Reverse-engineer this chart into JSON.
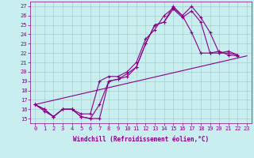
{
  "xlabel": "Windchill (Refroidissement éolien,°C)",
  "bg_color": "#c8eef0",
  "line_color": "#880088",
  "xlim": [
    -0.5,
    23.5
  ],
  "ylim": [
    14.5,
    27.5
  ],
  "xticks": [
    0,
    1,
    2,
    3,
    4,
    5,
    6,
    7,
    8,
    9,
    10,
    11,
    12,
    13,
    14,
    15,
    16,
    17,
    18,
    19,
    20,
    21,
    22,
    23
  ],
  "yticks": [
    15,
    16,
    17,
    18,
    19,
    20,
    21,
    22,
    23,
    24,
    25,
    26,
    27
  ],
  "series": [
    {
      "x": [
        0,
        1,
        2,
        3,
        4,
        5,
        6,
        7,
        8,
        9,
        10,
        11,
        12,
        13,
        14,
        15,
        16,
        17,
        18,
        19,
        20,
        21,
        22
      ],
      "y": [
        16.5,
        16.0,
        15.2,
        16.0,
        16.0,
        15.2,
        15.0,
        15.0,
        19.0,
        19.2,
        19.5,
        20.5,
        23.0,
        25.0,
        25.3,
        27.0,
        26.0,
        27.0,
        25.8,
        24.2,
        22.0,
        22.2,
        21.8
      ]
    },
    {
      "x": [
        0,
        1,
        2,
        3,
        4,
        5,
        6,
        7,
        8,
        9,
        10,
        11,
        12,
        13,
        14,
        15,
        16,
        17,
        18,
        19,
        20,
        21,
        22
      ],
      "y": [
        16.5,
        16.0,
        15.2,
        16.0,
        16.0,
        15.2,
        15.0,
        16.5,
        19.0,
        19.2,
        19.8,
        20.5,
        23.0,
        25.0,
        25.3,
        26.7,
        25.8,
        26.5,
        25.3,
        22.0,
        22.2,
        21.8,
        21.7
      ]
    },
    {
      "x": [
        0,
        1,
        2,
        3,
        4,
        5,
        6,
        7,
        8,
        9,
        10,
        11,
        12,
        13,
        14,
        15,
        16,
        17,
        18,
        19,
        20,
        21,
        22
      ],
      "y": [
        16.5,
        15.8,
        15.2,
        16.0,
        16.0,
        15.5,
        15.5,
        19.0,
        19.5,
        19.5,
        20.0,
        21.0,
        23.5,
        24.5,
        26.0,
        26.8,
        26.0,
        24.2,
        22.0,
        22.0,
        22.0,
        22.0,
        21.8
      ]
    },
    {
      "x": [
        0,
        23
      ],
      "y": [
        16.5,
        21.7
      ]
    }
  ],
  "grid_color": "#aacccc",
  "font_size_ticks": 5,
  "font_size_xlabel": 5.5
}
